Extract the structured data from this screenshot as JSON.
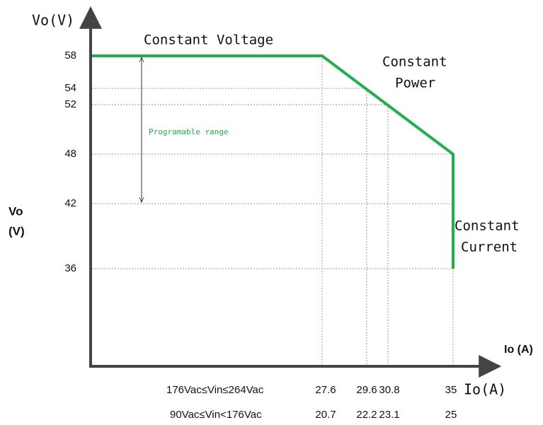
{
  "y_axis_label": "Vo(V)",
  "side_label": [
    "Vo",
    "(V)"
  ],
  "x_axis_label": "Io (A)",
  "y_ticks": [
    "58",
    "54",
    "52",
    "48",
    "42",
    "36"
  ],
  "regions": {
    "voltage": "Constant Voltage",
    "power": [
      "Constant",
      "Power"
    ],
    "current": [
      "Constant",
      "Current"
    ]
  },
  "range_label": "Programable range",
  "current_label": "Io(A)",
  "rows": [
    {
      "label": "176Vac≤Vin≤264Vac",
      "values": [
        "27.6",
        "29.6",
        "30.8",
        "35"
      ]
    },
    {
      "label": "90Vac≤Vin<176Vac",
      "values": [
        "20.7",
        "22.2",
        "23.1",
        "25"
      ]
    }
  ]
}
